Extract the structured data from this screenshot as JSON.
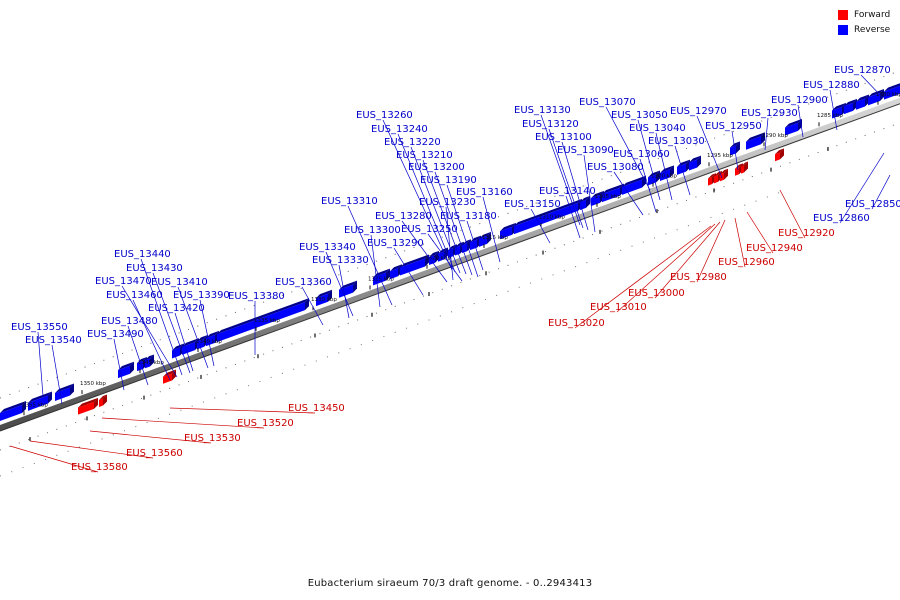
{
  "legend": {
    "forward_label": "Forward",
    "reverse_label": "Reverse",
    "forward_color": "#ff0000",
    "reverse_color": "#0000ff"
  },
  "caption": "Eubacterium siraeum 70/3 draft genome. - 0..2943413",
  "scale_ticks": [
    "1280 kbp",
    "1285 kbp",
    "1290 kbp",
    "1295 kbp",
    "1300 kbp",
    "1305 kbp",
    "1310 kbp",
    "1315 kbp",
    "1320 kbp",
    "1325 kbp",
    "1330 kbp",
    "1335 kbp",
    "1340 kbp",
    "1345 kbp",
    "1350 kbp",
    "1355 kbp"
  ],
  "reverse_genes": [
    "EUS_12870",
    "EUS_12880",
    "EUS_12900",
    "EUS_12930",
    "EUS_12950",
    "EUS_12970",
    "EUS_13070",
    "EUS_13050",
    "EUS_13040",
    "EUS_13030",
    "EUS_13060",
    "EUS_13080",
    "EUS_13130",
    "EUS_13120",
    "EUS_13100",
    "EUS_13090",
    "EUS_13140",
    "EUS_13150",
    "EUS_13160",
    "EUS_13260",
    "EUS_13240",
    "EUS_13220",
    "EUS_13210",
    "EUS_13200",
    "EUS_13190",
    "EUS_13230",
    "EUS_13180",
    "EUS_13280",
    "EUS_13250",
    "EUS_13290",
    "EUS_13310",
    "EUS_13300",
    "EUS_13340",
    "EUS_13330",
    "EUS_13360",
    "EUS_13380",
    "EUS_13440",
    "EUS_13430",
    "EUS_13470",
    "EUS_13410",
    "EUS_13460",
    "EUS_13390",
    "EUS_13420",
    "EUS_13480",
    "EUS_13490",
    "EUS_13550",
    "EUS_13540",
    "EUS_12860",
    "EUS_12850"
  ],
  "forward_genes": [
    "EUS_12920",
    "EUS_12940",
    "EUS_12960",
    "EUS_12980",
    "EUS_13000",
    "EUS_13010",
    "EUS_13020",
    "EUS_13450",
    "EUS_13520",
    "EUS_13530",
    "EUS_13560",
    "EUS_13580"
  ]
}
